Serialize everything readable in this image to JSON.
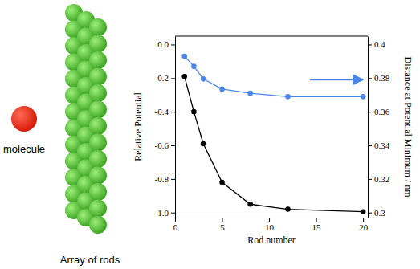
{
  "chart_data": {
    "type": "line",
    "x": [
      1,
      2,
      3,
      5,
      8,
      12,
      20
    ],
    "series": [
      {
        "color": "#000000",
        "marker": "circle",
        "values": [
          -0.19,
          -0.4,
          -0.59,
          -0.82,
          -0.95,
          -0.98,
          -0.995
        ]
      },
      {
        "color": "#4a86e8",
        "marker": "circle",
        "axis": "y2",
        "values": [
          0.393,
          0.387,
          0.3795,
          0.3735,
          0.371,
          0.369,
          0.369
        ]
      }
    ],
    "xlabel": "Rod number",
    "ylabel": "Relative Potential",
    "y2label": "Distance at Potential Minimum / nm",
    "xlim": [
      0,
      20.5
    ],
    "xticks": [
      0,
      5,
      10,
      15,
      20
    ],
    "ylim": [
      -1.03,
      0.05
    ],
    "yticks": [
      {
        "value": 0,
        "label": "0.0"
      },
      -0.2,
      -0.4,
      -0.6,
      -0.8,
      {
        "value": -1,
        "label": "-1.0"
      }
    ],
    "y2lim": [
      0.297,
      0.405
    ],
    "y2ticks": [
      0.3,
      0.32,
      0.34,
      0.36,
      0.38,
      0.4
    ],
    "grid": false,
    "annotations": [
      "molecule",
      "Array of rods"
    ]
  }
}
